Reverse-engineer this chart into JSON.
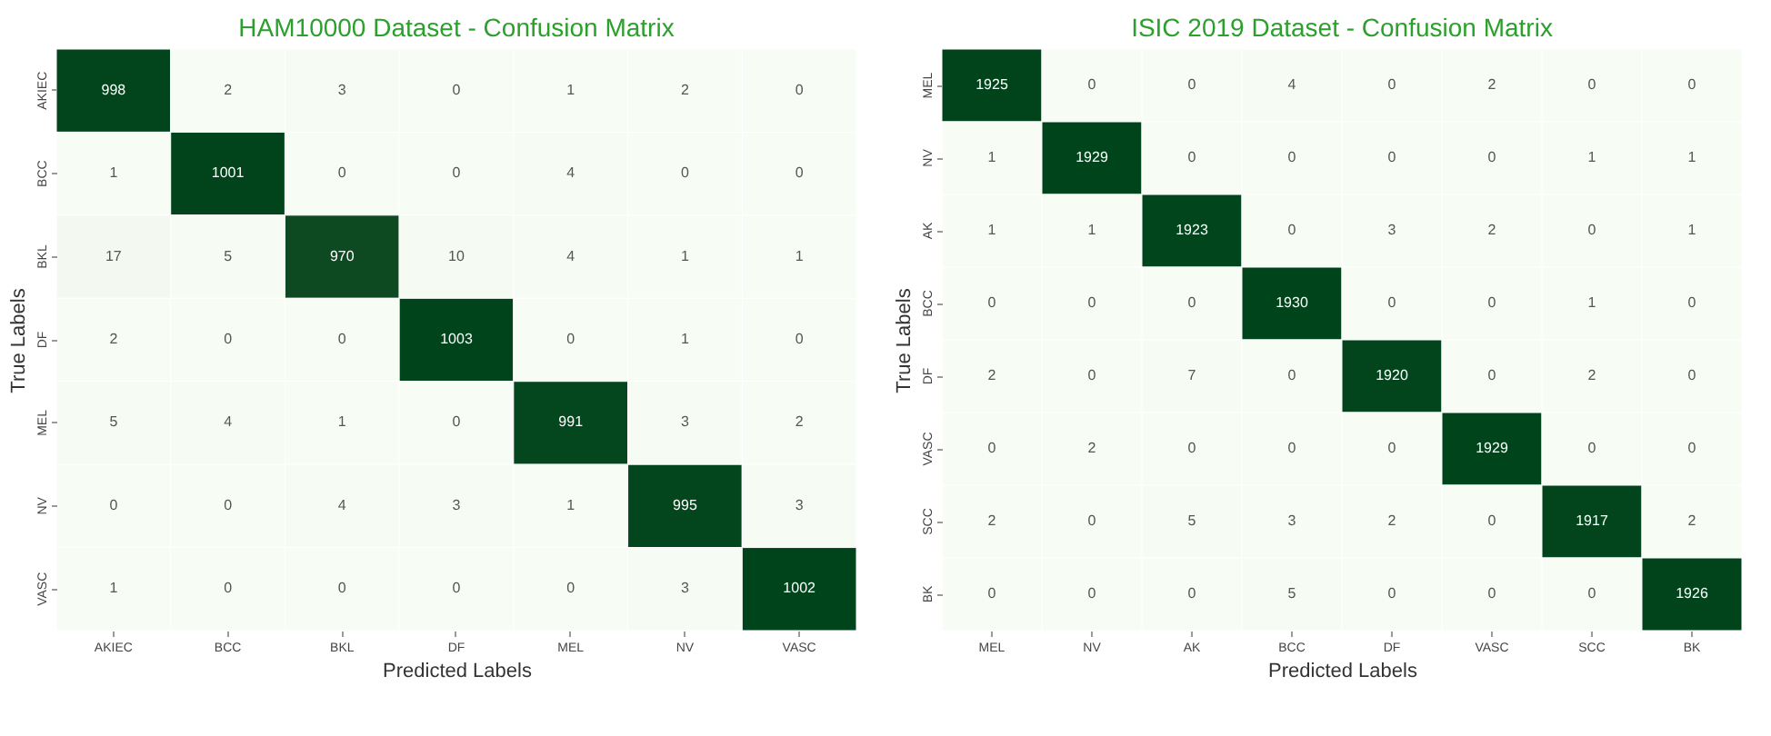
{
  "chart_data": [
    {
      "type": "heatmap",
      "title": "HAM10000 Dataset - Confusion Matrix",
      "xlabel": "Predicted Labels",
      "ylabel": "True Labels",
      "data_labels": true,
      "categories": [
        "AKIEC",
        "BCC",
        "BKL",
        "DF",
        "MEL",
        "NV",
        "VASC"
      ],
      "y_categories": [
        "AKIEC",
        "BCC",
        "BKL",
        "DF",
        "MEL",
        "NV",
        "VASC"
      ],
      "cells": [
        [
          998,
          2,
          3,
          0,
          1,
          2,
          0
        ],
        [
          1,
          1001,
          0,
          0,
          4,
          0,
          0
        ],
        [
          17,
          5,
          970,
          10,
          4,
          1,
          1
        ],
        [
          2,
          0,
          0,
          1003,
          0,
          1,
          0
        ],
        [
          5,
          4,
          1,
          0,
          991,
          3,
          2
        ],
        [
          0,
          0,
          4,
          3,
          1,
          995,
          3
        ],
        [
          1,
          0,
          0,
          0,
          0,
          3,
          1002
        ]
      ]
    },
    {
      "type": "heatmap",
      "title": "ISIC 2019 Dataset - Confusion Matrix",
      "xlabel": "Predicted Labels",
      "ylabel": "True Labels",
      "data_labels": true,
      "categories": [
        "MEL",
        "NV",
        "AK",
        "BCC",
        "DF",
        "VASC",
        "SCC",
        "BK"
      ],
      "y_categories": [
        "MEL",
        "NV",
        "AK",
        "BCC",
        "DF",
        "VASC",
        "SCC",
        "BK"
      ],
      "cells": [
        [
          1925,
          0,
          0,
          4,
          0,
          2,
          0,
          0
        ],
        [
          1,
          1929,
          0,
          0,
          0,
          0,
          1,
          1
        ],
        [
          1,
          1,
          1923,
          0,
          3,
          2,
          0,
          1
        ],
        [
          0,
          0,
          0,
          1930,
          0,
          0,
          1,
          0
        ],
        [
          2,
          0,
          7,
          0,
          1920,
          0,
          2,
          0
        ],
        [
          0,
          2,
          0,
          0,
          0,
          1929,
          0,
          0
        ],
        [
          2,
          0,
          5,
          3,
          2,
          0,
          1917,
          2
        ],
        [
          0,
          0,
          0,
          5,
          0,
          0,
          0,
          1926
        ]
      ]
    }
  ]
}
